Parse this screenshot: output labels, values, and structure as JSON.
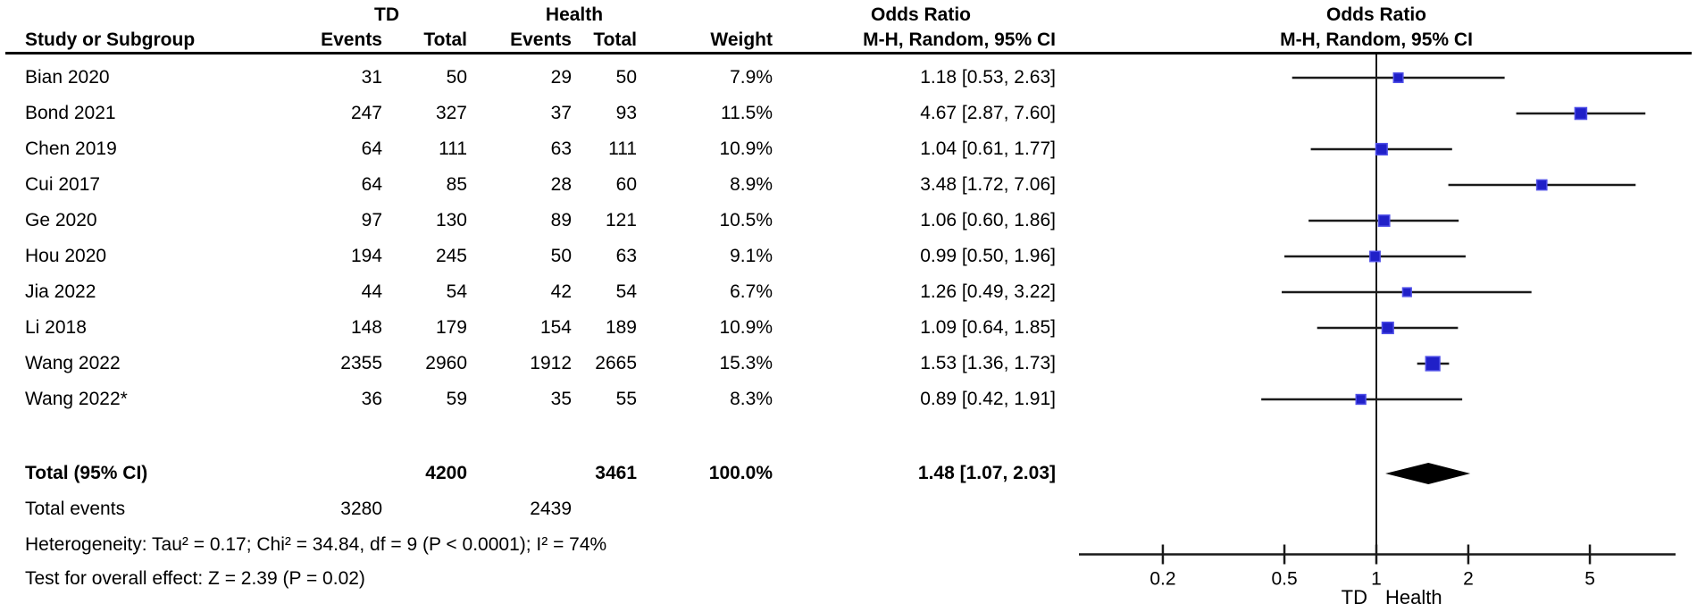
{
  "table": {
    "header": {
      "group_td": "TD",
      "group_health": "Health",
      "or_col_title": "Odds Ratio",
      "or_col_sub": "M-H, Random, 95% CI",
      "plot_title": "Odds Ratio",
      "plot_sub": "M-H, Random, 95% CI",
      "study_col": "Study or Subgroup",
      "events_col_td": "Events",
      "total_col_td": "Total",
      "events_col_health": "Events",
      "total_col_health": "Total",
      "weight_col": "Weight"
    },
    "totals": {
      "label": "Total (95% CI)",
      "td_total": "4200",
      "health_total": "3461",
      "weight": "100.0%",
      "or_text": "1.48 [1.07, 2.03]"
    },
    "total_events": {
      "label": "Total events",
      "td": "3280",
      "health": "2439"
    },
    "heterogeneity": "Heterogeneity: Tau² = 0.17; Chi² = 34.84, df = 9 (P < 0.0001); I² = 74%",
    "overall_effect": "Test for overall effect: Z = 2.39 (P = 0.02)"
  },
  "chart_data": {
    "type": "forest",
    "effect_measure": "Odds Ratio, M-H, Random, 95% CI",
    "studies": [
      {
        "name": "Bian 2020",
        "td_events": 31,
        "td_total": 50,
        "health_events": 29,
        "health_total": 50,
        "weight": "7.9%",
        "or": 1.18,
        "ci_low": 0.53,
        "ci_high": 2.63,
        "or_text": "1.18 [0.53, 2.63]"
      },
      {
        "name": "Bond 2021",
        "td_events": 247,
        "td_total": 327,
        "health_events": 37,
        "health_total": 93,
        "weight": "11.5%",
        "or": 4.67,
        "ci_low": 2.87,
        "ci_high": 7.6,
        "or_text": "4.67 [2.87, 7.60]"
      },
      {
        "name": "Chen 2019",
        "td_events": 64,
        "td_total": 111,
        "health_events": 63,
        "health_total": 111,
        "weight": "10.9%",
        "or": 1.04,
        "ci_low": 0.61,
        "ci_high": 1.77,
        "or_text": "1.04 [0.61, 1.77]"
      },
      {
        "name": "Cui 2017",
        "td_events": 64,
        "td_total": 85,
        "health_events": 28,
        "health_total": 60,
        "weight": "8.9%",
        "or": 3.48,
        "ci_low": 1.72,
        "ci_high": 7.06,
        "or_text": "3.48 [1.72, 7.06]"
      },
      {
        "name": "Ge 2020",
        "td_events": 97,
        "td_total": 130,
        "health_events": 89,
        "health_total": 121,
        "weight": "10.5%",
        "or": 1.06,
        "ci_low": 0.6,
        "ci_high": 1.86,
        "or_text": "1.06 [0.60, 1.86]"
      },
      {
        "name": "Hou 2020",
        "td_events": 194,
        "td_total": 245,
        "health_events": 50,
        "health_total": 63,
        "weight": "9.1%",
        "or": 0.99,
        "ci_low": 0.5,
        "ci_high": 1.96,
        "or_text": "0.99 [0.50, 1.96]"
      },
      {
        "name": "Jia 2022",
        "td_events": 44,
        "td_total": 54,
        "health_events": 42,
        "health_total": 54,
        "weight": "6.7%",
        "or": 1.26,
        "ci_low": 0.49,
        "ci_high": 3.22,
        "or_text": "1.26 [0.49, 3.22]"
      },
      {
        "name": "Li 2018",
        "td_events": 148,
        "td_total": 179,
        "health_events": 154,
        "health_total": 189,
        "weight": "10.9%",
        "or": 1.09,
        "ci_low": 0.64,
        "ci_high": 1.85,
        "or_text": "1.09 [0.64, 1.85]"
      },
      {
        "name": "Wang 2022",
        "td_events": 2355,
        "td_total": 2960,
        "health_events": 1912,
        "health_total": 2665,
        "weight": "15.3%",
        "or": 1.53,
        "ci_low": 1.36,
        "ci_high": 1.73,
        "or_text": "1.53 [1.36, 1.73]"
      },
      {
        "name": "Wang 2022*",
        "td_events": 36,
        "td_total": 59,
        "health_events": 35,
        "health_total": 55,
        "weight": "8.3%",
        "or": 0.89,
        "ci_low": 0.42,
        "ci_high": 1.91,
        "or_text": "0.89 [0.42, 1.91]"
      }
    ],
    "overall": {
      "or": 1.48,
      "ci_low": 1.07,
      "ci_high": 2.03
    },
    "axis": {
      "scale": "log",
      "ticks": [
        0.2,
        0.5,
        1,
        2,
        5
      ],
      "range": [
        0.107,
        9.35
      ],
      "left_label": "TD",
      "right_label": "Health"
    },
    "colors": {
      "marker": "#2020C8",
      "marker_border": "#5050E8",
      "line": "#1a1a1a",
      "diamond": "#000000",
      "text": "#000000"
    }
  }
}
